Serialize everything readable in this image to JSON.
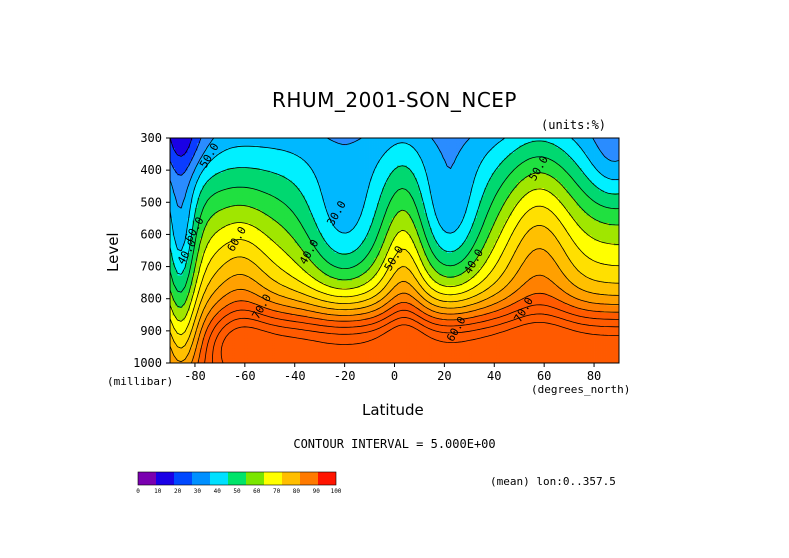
{
  "chart_data": {
    "type": "heatmap",
    "title": "RHUM_2001-SON_NCEP",
    "units_label": "(units:%)",
    "xlabel": "Latitude",
    "ylabel": "Level",
    "x_unit_label": "(degrees_north)",
    "y_unit_label": "(millibar)",
    "xlim": [
      -90,
      90
    ],
    "ylim": [
      1000,
      300
    ],
    "x_ticks": [
      -80,
      -60,
      -40,
      -20,
      0,
      20,
      40,
      60,
      80
    ],
    "x_tick_labels": [
      "-80",
      "-60",
      "-40",
      "-20",
      "0",
      "20",
      "40",
      "60",
      "80"
    ],
    "y_ticks": [
      300,
      400,
      500,
      600,
      700,
      800,
      900,
      1000
    ],
    "y_tick_labels": [
      "300",
      "400",
      "500",
      "600",
      "700",
      "800",
      "900",
      "1000"
    ],
    "contour_interval_label": "CONTOUR INTERVAL = 5.000E+00",
    "contour_labels": [
      {
        "text": "50.0",
        "lat": -73,
        "lev": 360
      },
      {
        "text": "60.0",
        "lat": -79,
        "lev": 590
      },
      {
        "text": "40.0",
        "lat": -82,
        "lev": 660
      },
      {
        "text": "60.0",
        "lat": -62,
        "lev": 620
      },
      {
        "text": "70.0",
        "lat": -52,
        "lev": 830
      },
      {
        "text": "30.0",
        "lat": -22,
        "lev": 540
      },
      {
        "text": "40.0",
        "lat": -33,
        "lev": 660
      },
      {
        "text": "50.0",
        "lat": 1,
        "lev": 680
      },
      {
        "text": "40.0",
        "lat": 33,
        "lev": 690
      },
      {
        "text": "60.0",
        "lat": 26,
        "lev": 900
      },
      {
        "text": "70.0",
        "lat": 53,
        "lev": 840
      },
      {
        "text": "50.0",
        "lat": 59,
        "lev": 400
      }
    ],
    "colorbar": {
      "levels": [
        "0",
        "10",
        "20",
        "30",
        "40",
        "50",
        "60",
        "70",
        "80",
        "90",
        "100"
      ],
      "colors": [
        "#7a00b0",
        "#1a00e6",
        "#0048ff",
        "#0090ff",
        "#00e0ff",
        "#00e46a",
        "#7ae600",
        "#ffff00",
        "#ffbe00",
        "#ff7a00",
        "#ff1400"
      ]
    },
    "fill_colors": [
      "#7a00b0",
      "#1a00e6",
      "#0a3cff",
      "#2a8cff",
      "#00b8ff",
      "#00f0ff",
      "#00d870",
      "#20e040",
      "#a0e600",
      "#ffff00",
      "#ffe000",
      "#ffc000",
      "#ffa000",
      "#ff8000",
      "#ff5a00"
    ]
  },
  "footer": {
    "mean_label": "(mean) lon:0..357.5"
  }
}
